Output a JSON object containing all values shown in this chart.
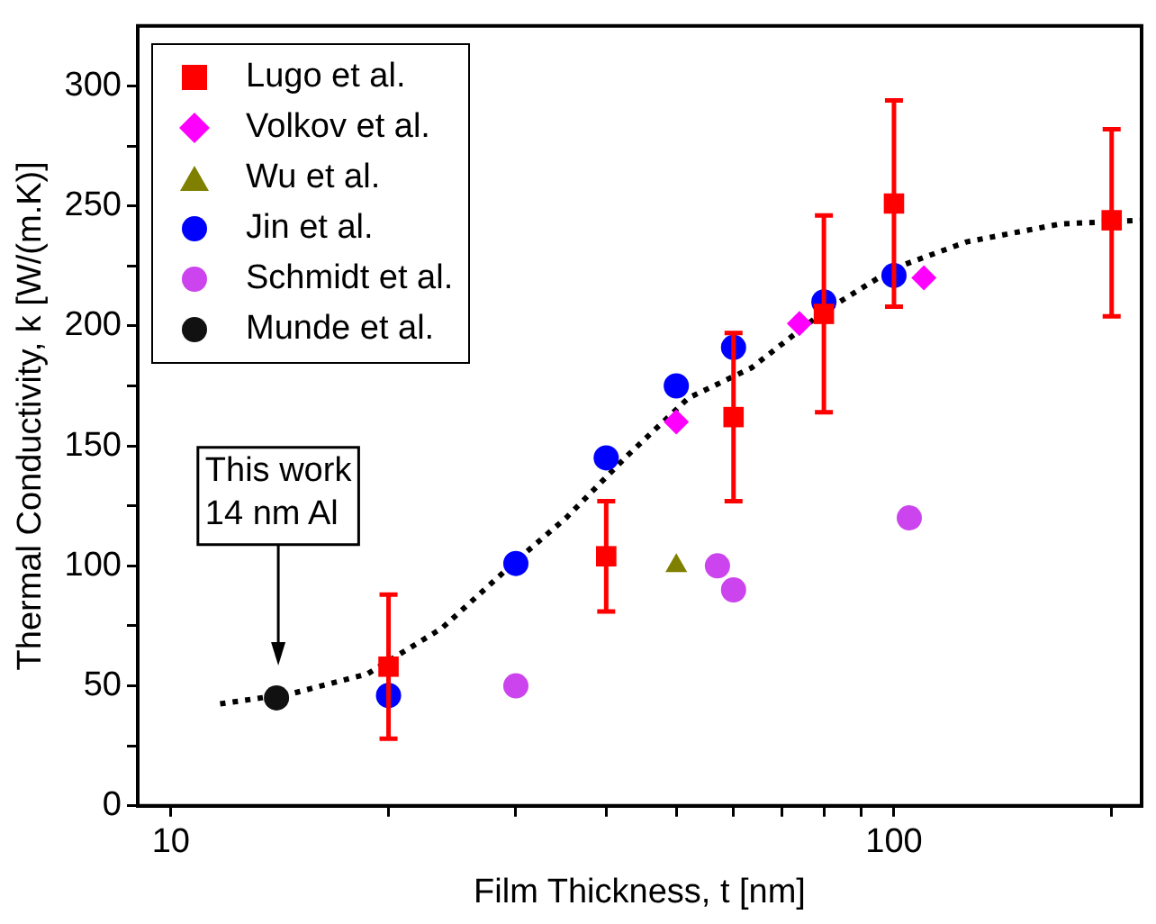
{
  "chart_data": {
    "type": "scatter",
    "xlabel": "Film Thickness, t [nm]",
    "ylabel": "Thermal Conductivity, k [W/(m.K)]",
    "annotations": [
      "This work\n14 nm Al"
    ],
    "series": [
      {
        "name": "Lugo et al.",
        "color": "#ff0000",
        "marker": "square",
        "x": [
          20,
          40,
          60,
          80,
          100,
          200
        ],
        "values": [
          58,
          104,
          162,
          205,
          251,
          244
        ],
        "errors": [
          [
            28,
            88
          ],
          [
            81,
            127
          ],
          [
            127,
            197
          ],
          [
            164,
            246
          ],
          [
            208,
            294
          ],
          [
            204,
            282
          ]
        ]
      },
      {
        "name": "Volkov et al.",
        "color": "#ff00ff",
        "marker": "diamond",
        "x": [
          50,
          74,
          110
        ],
        "values": [
          160,
          201,
          220
        ]
      },
      {
        "name": "Wu et al.",
        "color": "#808000",
        "marker": "triangle",
        "x": [
          50
        ],
        "values": [
          100
        ]
      },
      {
        "name": "Jin et al.",
        "color": "#0000ff",
        "marker": "circle",
        "x": [
          20,
          30,
          40,
          50,
          60,
          80,
          100
        ],
        "values": [
          46,
          101,
          145,
          175,
          191,
          210,
          221
        ]
      },
      {
        "name": "Schmidt et al.",
        "color": "#cc44ee",
        "marker": "circle",
        "x": [
          30,
          57,
          60,
          105
        ],
        "values": [
          50,
          100,
          90,
          120
        ]
      },
      {
        "name": "Munde et al.",
        "color": "#111111",
        "marker": "circle",
        "x": [
          14
        ],
        "values": [
          45
        ]
      },
      {
        "type": "line",
        "color": "#000000",
        "marker": "none",
        "line_style": "dotted",
        "x": [
          11.7,
          14.8,
          18.7,
          23.7,
          30,
          35.2,
          42.8,
          52,
          63.5,
          80,
          100,
          126,
          170,
          219
        ],
        "values": [
          42.5,
          47,
          55,
          74,
          102,
          120,
          146,
          170,
          182.5,
          206,
          224,
          235,
          242.5,
          244
        ]
      }
    ],
    "xlim": [
      9,
      220
    ],
    "ylim": [
      0,
      325
    ],
    "xticks": [
      10,
      {
        "value": 20,
        "label": null
      },
      {
        "value": 30,
        "label": null
      },
      {
        "value": 40,
        "label": null
      },
      {
        "value": 50,
        "label": null
      },
      {
        "value": 60,
        "label": null
      },
      {
        "value": 70,
        "label": null
      },
      {
        "value": 80,
        "label": null
      },
      {
        "value": 90,
        "label": null
      },
      100,
      {
        "value": 200,
        "label": null
      }
    ],
    "yticks": [
      0,
      {
        "value": 25,
        "label": null
      },
      50,
      {
        "value": 75,
        "label": null
      },
      100,
      {
        "value": 125,
        "label": null
      },
      150,
      {
        "value": 175,
        "label": null
      },
      200,
      {
        "value": 225,
        "label": null
      },
      250,
      {
        "value": 275,
        "label": null
      },
      300
    ],
    "log": "x",
    "grid": false,
    "legend": "top left"
  }
}
